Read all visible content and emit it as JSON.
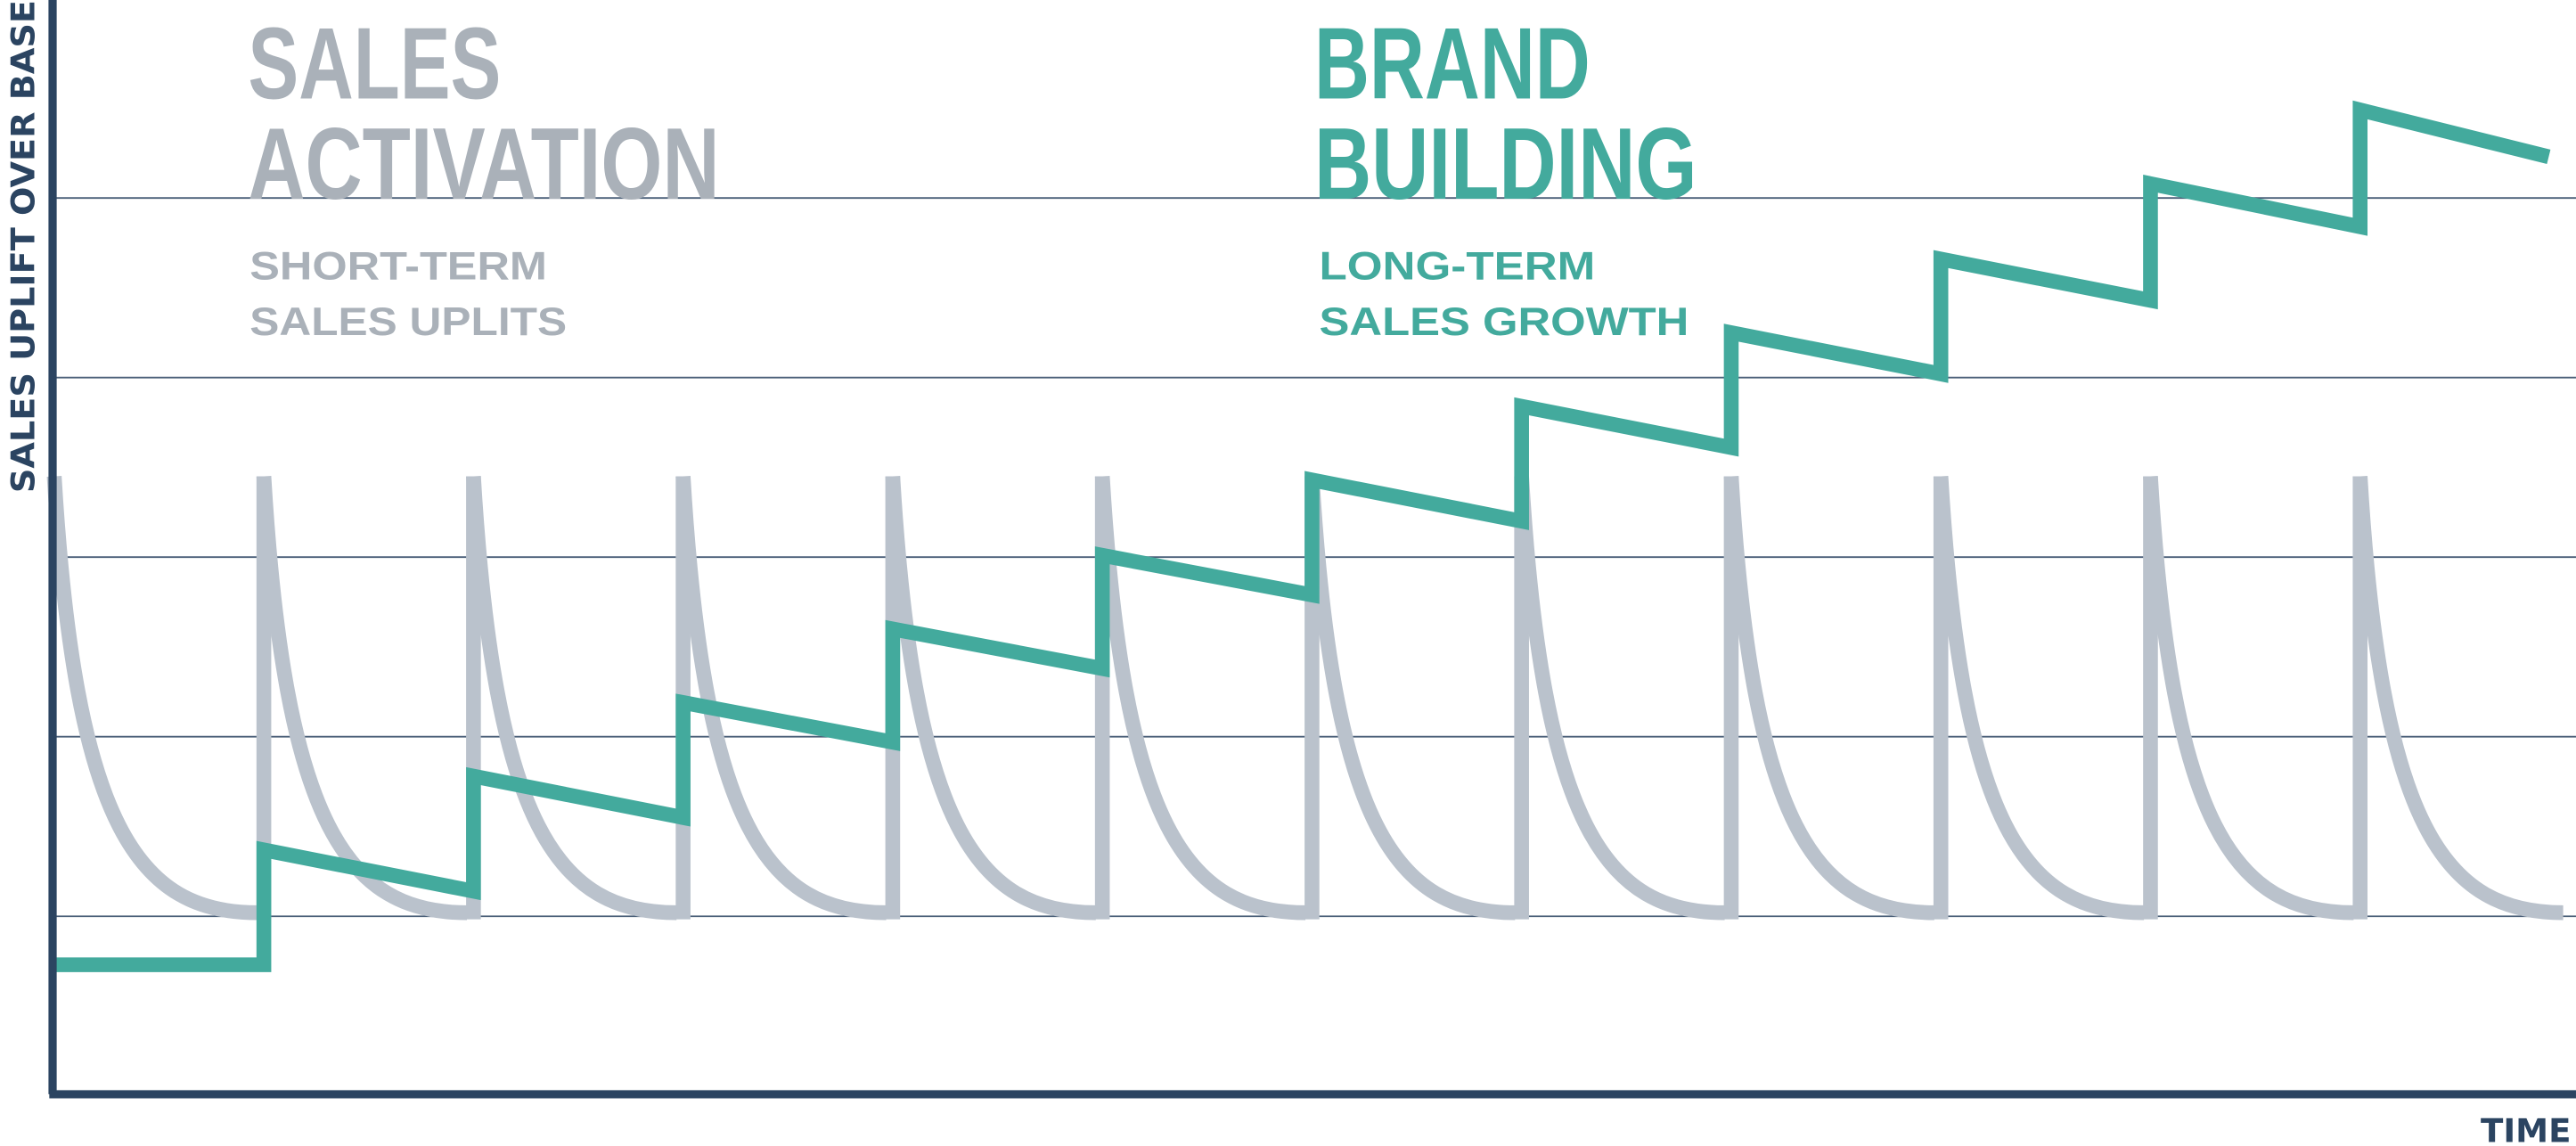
{
  "chart_data": {
    "type": "line",
    "title": "",
    "xlabel": "TIME",
    "ylabel": "SALES UPLIFT OVER BASE",
    "xlim": [
      0,
      12
    ],
    "ylim": [
      0,
      6
    ],
    "grid": {
      "horizontal": true,
      "values": [
        1,
        2,
        3,
        4,
        5
      ]
    },
    "legend": "none",
    "annotations": {
      "sales_activation": {
        "title_lines": [
          "SALES",
          "ACTIVATION"
        ],
        "sub_lines": [
          "SHORT-TERM",
          "SALES UPLITS"
        ],
        "color": "#aab1b9"
      },
      "brand_building": {
        "title_lines": [
          "BRAND",
          "BUILDING"
        ],
        "sub_lines": [
          "LONG-TERM",
          "SALES GROWTH"
        ],
        "color": "#43aa9d"
      }
    },
    "series": [
      {
        "role": "short-term sales uplifts",
        "color": "#bac2cc",
        "pulse_starts": [
          0,
          1,
          2,
          3,
          4,
          5,
          6,
          7,
          8,
          9,
          10,
          11
        ],
        "peak": 3.45,
        "trough": 1.02,
        "pulse_length": 1
      },
      {
        "role": "long-term sales growth",
        "color": "#43aa9d",
        "points": [
          [
            0,
            0.73
          ],
          [
            1,
            0.73
          ],
          [
            1,
            1.37
          ],
          [
            2,
            1.14
          ],
          [
            2,
            1.78
          ],
          [
            3,
            1.55
          ],
          [
            3,
            2.19
          ],
          [
            4,
            1.97
          ],
          [
            4,
            2.6
          ],
          [
            5,
            2.38
          ],
          [
            5,
            3.01
          ],
          [
            6,
            2.79
          ],
          [
            6,
            3.43
          ],
          [
            7,
            3.2
          ],
          [
            7,
            3.84
          ],
          [
            8,
            3.61
          ],
          [
            8,
            4.25
          ],
          [
            9,
            4.02
          ],
          [
            9,
            4.66
          ],
          [
            10,
            4.43
          ],
          [
            10,
            5.08
          ],
          [
            11,
            4.84
          ],
          [
            11,
            5.49
          ],
          [
            11.9,
            5.23
          ]
        ]
      }
    ],
    "colors": {
      "axis": "#2b4461",
      "grid": "#4a5f78"
    }
  }
}
